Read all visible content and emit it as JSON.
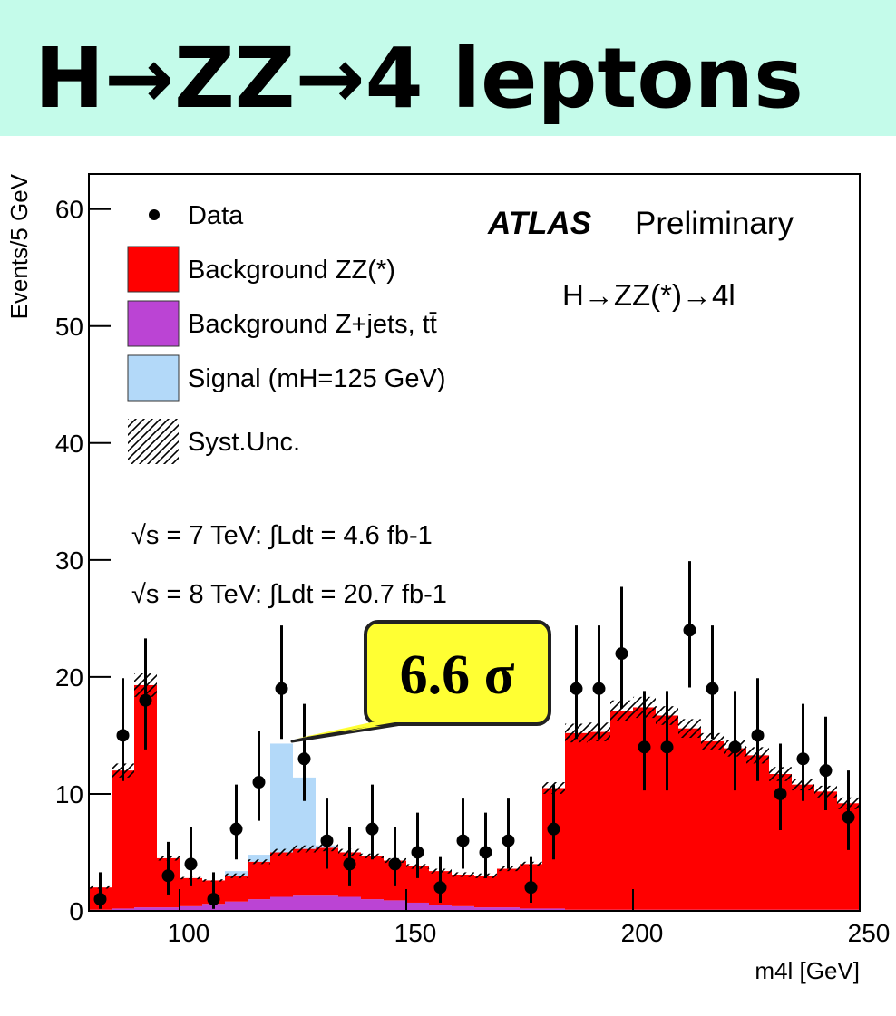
{
  "header": {
    "title": "H→ZZ→4 leptons"
  },
  "chart_data": {
    "type": "histogram",
    "y_label": "Events/5 GeV",
    "x_label": "m4l [GeV]",
    "annotations": [
      "ATLAS",
      "Preliminary",
      "H→ZZ(*)→4l",
      "√s = 7 TeV: ∫Ldt = 4.6 fb-1",
      "√s = 8 TeV: ∫Ldt = 20.7 fb-1",
      "6.6 σ"
    ],
    "bins": [
      80,
      85,
      90,
      95,
      100,
      105,
      110,
      115,
      120,
      125,
      130,
      135,
      140,
      145,
      150,
      155,
      160,
      165,
      170,
      175,
      180,
      185,
      190,
      195,
      200,
      205,
      210,
      215,
      220,
      225,
      230,
      235,
      240,
      245,
      250
    ],
    "xlim": [
      80,
      250
    ],
    "xticks": [
      100,
      150,
      200,
      250
    ],
    "ylim": [
      0,
      63
    ],
    "yticks": [
      0,
      10,
      20,
      30,
      40,
      50,
      60
    ],
    "series": [
      {
        "name": "Data",
        "color": "#000000",
        "values": [
          1,
          15,
          18,
          3,
          4,
          1,
          7,
          11,
          19,
          13,
          6,
          4,
          7,
          4,
          5,
          2,
          6,
          5,
          6,
          2,
          7,
          19,
          19,
          22,
          14,
          14,
          24,
          19,
          14,
          15,
          10,
          13,
          12,
          8
        ],
        "err_low": [
          0.83,
          3.9,
          4.2,
          1.6,
          1.9,
          0.83,
          2.6,
          3.3,
          4.3,
          3.6,
          2.4,
          1.9,
          2.6,
          1.9,
          2.2,
          1.3,
          2.4,
          2.2,
          2.4,
          1.3,
          2.6,
          4.3,
          4.3,
          4.7,
          3.7,
          3.7,
          4.9,
          4.3,
          3.7,
          3.9,
          3.1,
          3.6,
          3.4,
          2.8
        ],
        "err_high": [
          2.3,
          4.9,
          5.3,
          2.9,
          3.2,
          2.3,
          3.8,
          4.4,
          5.4,
          4.7,
          3.6,
          3.2,
          3.8,
          3.2,
          3.4,
          2.6,
          3.6,
          3.4,
          3.6,
          2.6,
          3.8,
          5.4,
          5.4,
          5.7,
          4.8,
          4.8,
          5.9,
          5.4,
          4.8,
          4.9,
          4.3,
          4.7,
          4.6,
          4.0
        ]
      },
      {
        "name": "Background Z+jets, tt̄",
        "color": "#bb44d4",
        "values": [
          0.1,
          0.2,
          0.3,
          0.3,
          0.4,
          0.6,
          0.8,
          1.0,
          1.2,
          1.3,
          1.3,
          1.2,
          1.0,
          0.9,
          0.7,
          0.5,
          0.4,
          0.3,
          0.3,
          0.2,
          0.2,
          0.1,
          0.1,
          0.1,
          0.1,
          0.1,
          0.1,
          0.1,
          0.1,
          0.1,
          0.1,
          0.1,
          0.1,
          0.1
        ]
      },
      {
        "name": "Background ZZ(*)",
        "color": "#ff0000",
        "values": [
          1.9,
          11.8,
          19.0,
          4.2,
          2.4,
          2.0,
          2.2,
          3.2,
          3.8,
          4.0,
          4.1,
          3.8,
          3.7,
          3.4,
          3.1,
          2.9,
          2.7,
          2.7,
          3.3,
          3.8,
          10.3,
          15.1,
          15.2,
          17.0,
          17.3,
          16.6,
          15.5,
          14.4,
          13.8,
          13.2,
          11.6,
          10.7,
          10.1,
          9.1
        ]
      },
      {
        "name": "Signal (mH=125 GeV)",
        "color": "#b3d9f9",
        "values": [
          0,
          0,
          0,
          0,
          0,
          0,
          0.4,
          0.6,
          9.3,
          6.1,
          0.2,
          0,
          0,
          0,
          0,
          0,
          0,
          0,
          0,
          0,
          0,
          0,
          0,
          0,
          0,
          0,
          0,
          0,
          0,
          0,
          0,
          0,
          0,
          0
        ]
      }
    ],
    "syst": {
      "name": "Syst.Unc.",
      "values": [
        0.1,
        0.6,
        1.0,
        0.2,
        0.1,
        0.1,
        0.2,
        0.2,
        0.3,
        0.3,
        0.3,
        0.3,
        0.2,
        0.2,
        0.2,
        0.2,
        0.2,
        0.2,
        0.2,
        0.2,
        0.5,
        0.8,
        0.8,
        0.9,
        0.9,
        0.8,
        0.8,
        0.7,
        0.7,
        0.7,
        0.6,
        0.5,
        0.5,
        0.5
      ]
    }
  }
}
